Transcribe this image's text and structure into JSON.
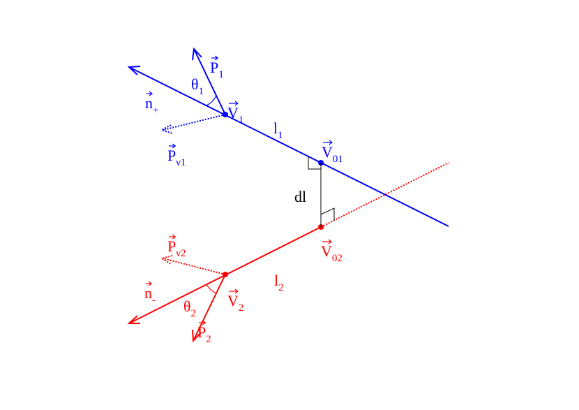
{
  "labels": [
    {
      "text": "P",
      "sub": "1",
      "vector": true,
      "color": "#0000ff"
    },
    {
      "text": "θ",
      "sub": "1",
      "vector": false,
      "color": "#0000ff"
    },
    {
      "text": "n",
      "sub": "+",
      "vector": true,
      "color": "#0000ff"
    },
    {
      "text": "V",
      "sub": "1",
      "vector": true,
      "color": "#0000ff"
    },
    {
      "text": "l",
      "sub": "1",
      "vector": false,
      "color": "#0000ff"
    },
    {
      "text": "V",
      "sub": "01",
      "vector": true,
      "color": "#0000ff"
    },
    {
      "text": "P",
      "sub": "ν1",
      "vector": true,
      "color": "#0000ff"
    },
    {
      "text": "dl",
      "sub": "",
      "vector": false,
      "color": "#000000"
    },
    {
      "text": "P",
      "sub": "ν2",
      "vector": true,
      "color": "#ff0000"
    },
    {
      "text": "V",
      "sub": "02",
      "vector": true,
      "color": "#ff0000"
    },
    {
      "text": "n",
      "sub": "-",
      "vector": true,
      "color": "#ff0000"
    },
    {
      "text": "l",
      "sub": "2",
      "vector": false,
      "color": "#ff0000"
    },
    {
      "text": "V",
      "sub": "2",
      "vector": true,
      "color": "#ff0000"
    },
    {
      "text": "θ",
      "sub": "2",
      "vector": false,
      "color": "#ff0000"
    },
    {
      "text": "P",
      "sub": "2",
      "vector": true,
      "color": "#ff0000"
    }
  ]
}
